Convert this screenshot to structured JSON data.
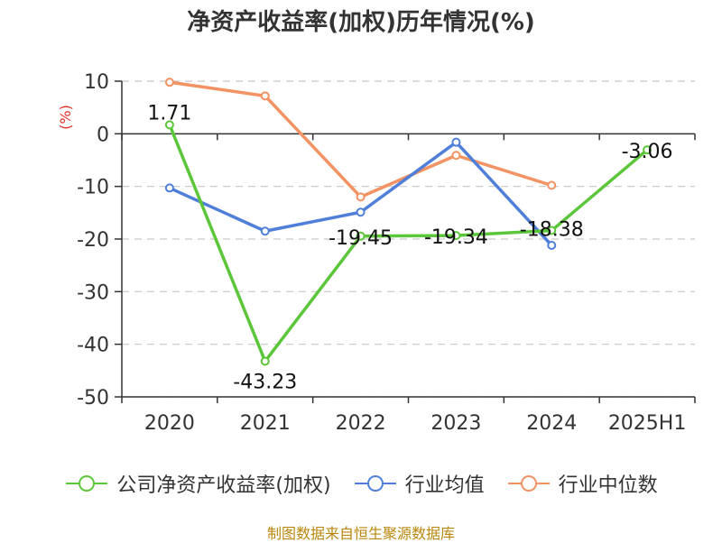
{
  "title": "净资产收益率(加权)历年情况(%)",
  "unit": "(%)",
  "source": "制图数据来自恒生聚源数据库",
  "chart_data": {
    "type": "line",
    "categories": [
      "2020",
      "2021",
      "2022",
      "2023",
      "2024",
      "2025H1"
    ],
    "ylim": [
      -50,
      10
    ],
    "yticks": [
      10,
      0,
      -10,
      -20,
      -30,
      -40,
      -50
    ],
    "grid": true,
    "legend_position": "bottom",
    "series": [
      {
        "name": "公司净资产收益率(加权)",
        "color": "#5cc63a",
        "values": [
          1.71,
          -43.23,
          -19.45,
          -19.34,
          -18.38,
          -3.06
        ],
        "labels": [
          "1.71",
          "-43.23",
          "-19.45",
          "-19.34",
          "-18.38",
          "-3.06"
        ]
      },
      {
        "name": "行业均值",
        "color": "#4f7fd9",
        "values": [
          -10.3,
          -18.5,
          -14.9,
          -1.6,
          -21.2,
          null
        ]
      },
      {
        "name": "行业中位数",
        "color": "#f39262",
        "values": [
          9.8,
          7.2,
          -12.0,
          -4.1,
          -9.8,
          null
        ]
      }
    ]
  }
}
